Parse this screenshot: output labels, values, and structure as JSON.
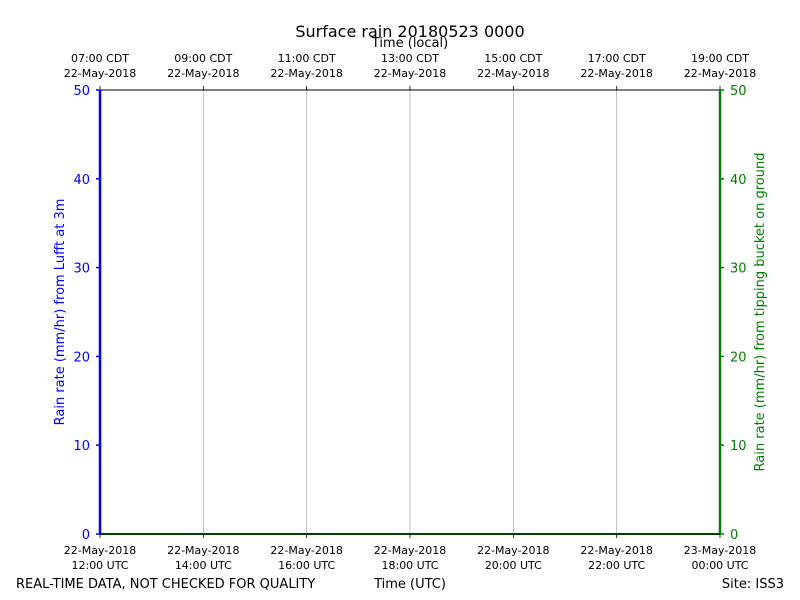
{
  "chart_data": {
    "type": "line",
    "title": "Surface rain 20180523 0000",
    "x_top_label": "Time (local)",
    "x_bottom_label": "Time (UTC)",
    "xlim": [
      "2018-05-22 12:00 UTC",
      "2018-05-23 00:00 UTC"
    ],
    "x_ticks_top": [
      {
        "line1": "07:00 CDT",
        "line2": "22-May-2018"
      },
      {
        "line1": "09:00 CDT",
        "line2": "22-May-2018"
      },
      {
        "line1": "11:00 CDT",
        "line2": "22-May-2018"
      },
      {
        "line1": "13:00 CDT",
        "line2": "22-May-2018"
      },
      {
        "line1": "15:00 CDT",
        "line2": "22-May-2018"
      },
      {
        "line1": "17:00 CDT",
        "line2": "22-May-2018"
      },
      {
        "line1": "19:00 CDT",
        "line2": "22-May-2018"
      }
    ],
    "x_ticks_bottom": [
      {
        "line1": "22-May-2018",
        "line2": "12:00 UTC"
      },
      {
        "line1": "22-May-2018",
        "line2": "14:00 UTC"
      },
      {
        "line1": "22-May-2018",
        "line2": "16:00 UTC"
      },
      {
        "line1": "22-May-2018",
        "line2": "18:00 UTC"
      },
      {
        "line1": "22-May-2018",
        "line2": "20:00 UTC"
      },
      {
        "line1": "22-May-2018",
        "line2": "22:00 UTC"
      },
      {
        "line1": "23-May-2018",
        "line2": "00:00 UTC"
      }
    ],
    "y_left": {
      "label": "Rain rate (mm/hr) from Lufft at 3m",
      "ylim": [
        0,
        50
      ],
      "ticks": [
        0,
        10,
        20,
        30,
        40,
        50
      ],
      "color": "#0000ff"
    },
    "y_right": {
      "label": "Rain rate (mm/hr) from tipping bucket on ground",
      "ylim": [
        0,
        50
      ],
      "ticks": [
        0,
        10,
        20,
        30,
        40,
        50
      ],
      "color": "#008000"
    },
    "grid": "x",
    "series": [
      {
        "axis": "left",
        "color": "#0000ff",
        "x": [
          "12:00",
          "14:00",
          "16:00",
          "18:00",
          "20:00",
          "22:00",
          "00:00"
        ],
        "values": [
          0,
          0,
          0,
          0,
          0,
          0,
          0
        ]
      },
      {
        "axis": "right",
        "color": "#008000",
        "x": [
          "12:00",
          "14:00",
          "16:00",
          "18:00",
          "20:00",
          "22:00",
          "00:00"
        ],
        "values": [
          0,
          0,
          0,
          0,
          0,
          0,
          0
        ]
      }
    ]
  },
  "footer": {
    "left": "REAL-TIME DATA, NOT CHECKED FOR QUALITY",
    "right": "Site: ISS3"
  }
}
